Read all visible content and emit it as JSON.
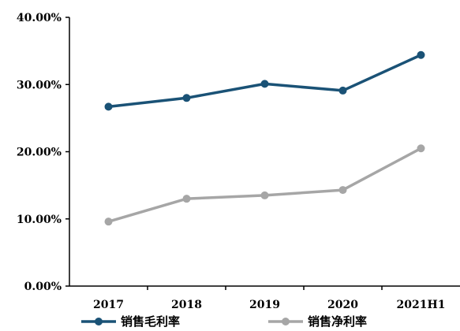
{
  "chart_data": {
    "type": "line",
    "title": "",
    "xlabel": "",
    "ylabel": "",
    "categories": [
      "2017",
      "2018",
      "2019",
      "2020",
      "2021H1"
    ],
    "ylim": [
      0,
      40
    ],
    "y_ticks": [
      "0.00%",
      "10.00%",
      "20.00%",
      "30.00%",
      "40.00%"
    ],
    "grid": false,
    "legend_position": "bottom",
    "series": [
      {
        "name": "销售毛利率",
        "color": "#1a5276",
        "values": [
          26.7,
          28.0,
          30.1,
          29.1,
          34.4
        ]
      },
      {
        "name": "销售净利率",
        "color": "#a6a6a6",
        "values": [
          9.6,
          13.0,
          13.5,
          14.3,
          20.5
        ]
      }
    ]
  }
}
